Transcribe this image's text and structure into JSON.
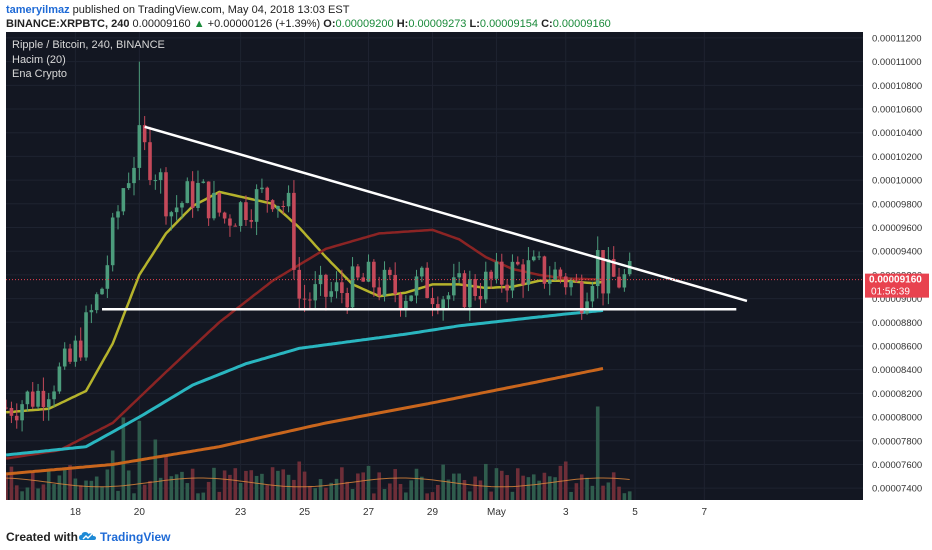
{
  "header": {
    "author": "tameryilmaz",
    "published": " published on TradingView.com, May 04, 2018 13:03 EST",
    "symbol": "BINANCE:XRPBTC, 240",
    "last": "0.00009160",
    "change_arrow": "▲",
    "change": "+0.00000126 (+1.39%)",
    "o_label": "O:",
    "o": "0.00009200",
    "h_label": "H:",
    "h": "0.00009273",
    "l_label": "L:",
    "l": "0.00009154",
    "c_label": "C:",
    "c": "0.00009160"
  },
  "legend": [
    "Ripple / Bitcoin, 240, BINANCE",
    "Hacim (20)",
    "Ena Crypto"
  ],
  "footer": {
    "created": "Created with",
    "brand": "TradingView",
    "logo_icon": "tradingview-cloud-icon"
  },
  "colors": {
    "background": "#131722",
    "grid": "#1e2330",
    "axis_bg": "#ffffff",
    "up": "#4c9c7c",
    "down": "#c5495a",
    "ma_yellow": "#b5b32c",
    "ma_red": "#8b2424",
    "ma_cyan": "#2ab6c0",
    "ma_orange": "#c9661d",
    "trend": "#ffffff",
    "price_label": "#e8424f",
    "volume_ma": "#e38a3c"
  },
  "chart_data": {
    "type": "candlestick",
    "title": "Ripple / Bitcoin, 240, BINANCE",
    "y_axis": {
      "range": [
        7.3e-05,
        0.0001125
      ],
      "ticks": [
        "0.00011200",
        "0.00011000",
        "0.00010800",
        "0.00010600",
        "0.00010400",
        "0.00010200",
        "0.00010000",
        "0.00009800",
        "0.00009600",
        "0.00009400",
        "0.00009200",
        "0.00009000",
        "0.00008800",
        "0.00008600",
        "0.00008400",
        "0.00008200",
        "0.00008000",
        "0.00007800",
        "0.00007600",
        "0.00007400"
      ],
      "tick_values": [
        0.000112,
        0.00011,
        0.000108,
        0.000106,
        0.000104,
        0.000102,
        0.0001,
        9.8e-05,
        9.6e-05,
        9.4e-05,
        9.2e-05,
        9e-05,
        8.8e-05,
        8.6e-05,
        8.4e-05,
        8.2e-05,
        8e-05,
        7.8e-05,
        7.6e-05,
        7.4e-05
      ]
    },
    "x_axis": {
      "ticks": [
        "18",
        "20",
        "23",
        "25",
        "27",
        "29",
        "May",
        "3",
        "5",
        "7"
      ],
      "tick_index": [
        -14,
        -2,
        17,
        29,
        41,
        53,
        65,
        78,
        91,
        104
      ],
      "last_index": 90
    },
    "price_label": {
      "value": "0.00009160",
      "countdown": "01:56:39",
      "price": 9.16e-05
    },
    "candles": {
      "seed": 7,
      "anchors": [
        [
          0,
          8.08e-05
        ],
        [
          6,
          8.2e-05
        ],
        [
          12,
          8.45e-05
        ],
        [
          15,
          8.75e-05
        ],
        [
          18,
          9.1e-05
        ],
        [
          22,
          9.95e-05
        ],
        [
          25,
          0.000103
        ],
        [
          28,
          0.000101
        ],
        [
          31,
          9.75e-05
        ],
        [
          36,
          9.92e-05
        ],
        [
          41,
          9.68e-05
        ],
        [
          45,
          9.8e-05
        ],
        [
          50,
          9.9e-05
        ],
        [
          53,
          9.75e-05
        ],
        [
          55,
          9e-05
        ],
        [
          62,
          9.05e-05
        ],
        [
          68,
          9.15e-05
        ],
        [
          74,
          9.05e-05
        ],
        [
          78,
          9.12e-05
        ],
        [
          83,
          9.03e-05
        ],
        [
          88,
          9.1e-05
        ],
        [
          92,
          9.15e-05
        ],
        [
          96,
          9.25e-05
        ],
        [
          100,
          9.22e-05
        ],
        [
          104,
          9.2e-05
        ],
        [
          108,
          9.05e-05
        ],
        [
          111,
          9.35e-05
        ],
        [
          112,
          9.16e-05
        ]
      ],
      "spikes": [
        [
          25,
          0.00011
        ],
        [
          27,
          0.0001045
        ],
        [
          22,
          9.9e-05
        ]
      ]
    },
    "series": [
      {
        "name": "MA yellow",
        "points": [
          [
            0,
            8.04e-05
          ],
          [
            8,
            8.07e-05
          ],
          [
            15,
            8.22e-05
          ],
          [
            20,
            8.62e-05
          ],
          [
            25,
            9.2e-05
          ],
          [
            30,
            9.55e-05
          ],
          [
            35,
            9.78e-05
          ],
          [
            40,
            9.9e-05
          ],
          [
            45,
            9.85e-05
          ],
          [
            50,
            9.8e-05
          ],
          [
            55,
            9.6e-05
          ],
          [
            60,
            9.35e-05
          ],
          [
            65,
            9.12e-05
          ],
          [
            70,
            9.02e-05
          ],
          [
            75,
            9.05e-05
          ],
          [
            80,
            9.12e-05
          ],
          [
            85,
            9.12e-05
          ],
          [
            90,
            9.09e-05
          ],
          [
            95,
            9.1e-05
          ],
          [
            100,
            9.15e-05
          ],
          [
            105,
            9.15e-05
          ],
          [
            110,
            9.13e-05
          ],
          [
            112,
            9.14e-05
          ]
        ]
      },
      {
        "name": "MA red",
        "points": [
          [
            0,
            7.65e-05
          ],
          [
            10,
            7.72e-05
          ],
          [
            20,
            7.95e-05
          ],
          [
            30,
            8.38e-05
          ],
          [
            40,
            8.8e-05
          ],
          [
            50,
            9.15e-05
          ],
          [
            60,
            9.42e-05
          ],
          [
            70,
            9.55e-05
          ],
          [
            80,
            9.58e-05
          ],
          [
            85,
            9.5e-05
          ],
          [
            90,
            9.35e-05
          ],
          [
            95,
            9.25e-05
          ],
          [
            100,
            9.2e-05
          ],
          [
            105,
            9.17e-05
          ],
          [
            112,
            9.16e-05
          ]
        ]
      },
      {
        "name": "MA cyan",
        "points": [
          [
            0,
            7.68e-05
          ],
          [
            15,
            7.75e-05
          ],
          [
            25,
            8e-05
          ],
          [
            35,
            8.27e-05
          ],
          [
            45,
            8.45e-05
          ],
          [
            55,
            8.58e-05
          ],
          [
            65,
            8.64e-05
          ],
          [
            75,
            8.7e-05
          ],
          [
            85,
            8.77e-05
          ],
          [
            95,
            8.82e-05
          ],
          [
            105,
            8.87e-05
          ],
          [
            112,
            8.9e-05
          ]
        ]
      },
      {
        "name": "MA orange",
        "points": [
          [
            0,
            7.52e-05
          ],
          [
            20,
            7.6e-05
          ],
          [
            40,
            7.75e-05
          ],
          [
            60,
            7.95e-05
          ],
          [
            80,
            8.12e-05
          ],
          [
            100,
            8.3e-05
          ],
          [
            112,
            8.41e-05
          ]
        ]
      }
    ],
    "trendlines": [
      {
        "from": [
          26,
          0.0001045
        ],
        "to": [
          139,
          8.98e-05
        ]
      },
      {
        "from": [
          18,
          8.91e-05
        ],
        "to": [
          137,
          8.91e-05
        ]
      }
    ],
    "volume": {
      "max": 1.0,
      "seed": 11,
      "big": [
        [
          22,
          0.75
        ],
        [
          25,
          0.72
        ],
        [
          28,
          0.55
        ],
        [
          55,
          0.35
        ],
        [
          105,
          0.35
        ],
        [
          111,
          0.85
        ],
        [
          20,
          0.45
        ],
        [
          30,
          0.4
        ]
      ]
    }
  }
}
